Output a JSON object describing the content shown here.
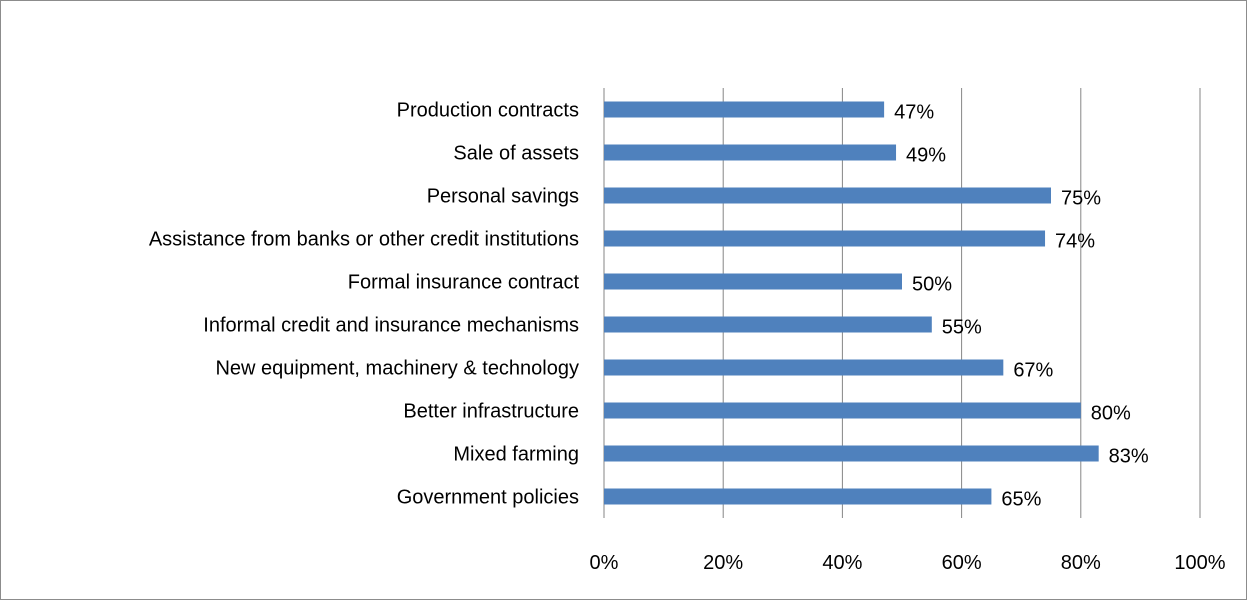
{
  "chart_data": {
    "type": "bar",
    "orientation": "horizontal",
    "categories": [
      "Production contracts",
      "Sale of assets",
      "Personal savings",
      "Assistance from banks or other credit institutions",
      "Formal insurance contract",
      "Informal credit and insurance mechanisms",
      "New equipment, machinery & technology",
      "Better infrastructure",
      "Mixed farming",
      "Government policies"
    ],
    "values": [
      47,
      49,
      75,
      74,
      50,
      55,
      67,
      80,
      83,
      65
    ],
    "data_labels": [
      "47%",
      "49%",
      "75%",
      "74%",
      "50%",
      "55%",
      "67%",
      "80%",
      "83%",
      "65%"
    ],
    "xlim": [
      0,
      100
    ],
    "x_ticks": [
      "0%",
      "20%",
      "40%",
      "60%",
      "80%",
      "100%"
    ],
    "title": "",
    "xlabel": "",
    "ylabel": "",
    "grid": "vertical",
    "legend": "none",
    "colors": {
      "bar": "#4f81bd",
      "grid": "#868686"
    }
  }
}
